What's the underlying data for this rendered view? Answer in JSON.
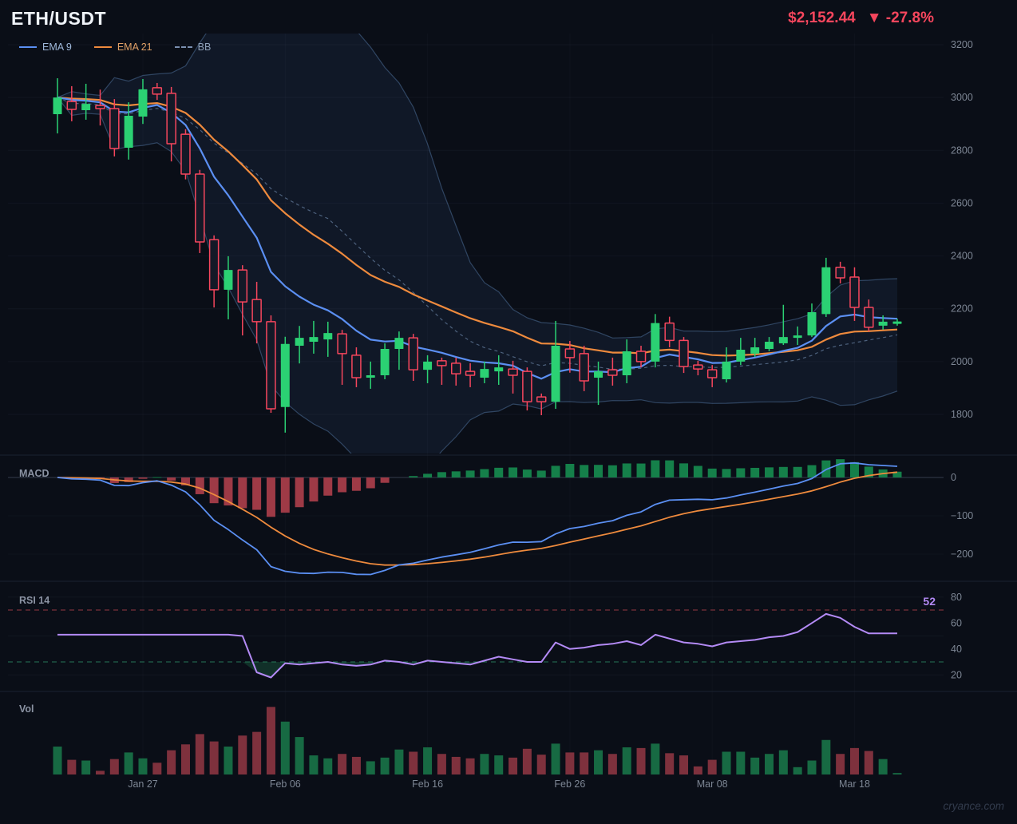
{
  "header": {
    "symbol": "ETH/USDT",
    "price": "$2,152.44",
    "change": "▼ -27.8%",
    "price_color": "#f6465d"
  },
  "legend": [
    {
      "label": "EMA 9",
      "color": "#5b8ff2",
      "style": "solid"
    },
    {
      "label": "EMA 21",
      "color": "#ee8a3d",
      "style": "solid"
    },
    {
      "label": "BB",
      "color": "#7a8fb0",
      "style": "dashed"
    }
  ],
  "watermark": "cryance.com",
  "chart_data": {
    "type": "candlestick",
    "symbol": "ETH/USDT",
    "panels": {
      "macd_label": "MACD",
      "rsi_label": "RSI 14",
      "vol_label": "Vol"
    },
    "x_ticks": [
      {
        "i": 6,
        "label": "Jan 27"
      },
      {
        "i": 16,
        "label": "Feb 06"
      },
      {
        "i": 26,
        "label": "Feb 16"
      },
      {
        "i": 36,
        "label": "Feb 26"
      },
      {
        "i": 46,
        "label": "Mar 08"
      },
      {
        "i": 56,
        "label": "Mar 18"
      }
    ],
    "price_axis_ticks": [
      3200,
      3000,
      2800,
      2600,
      2400,
      2200,
      2000,
      1800
    ],
    "macd_axis_ticks": [
      0,
      -100,
      -200
    ],
    "rsi_axis_ticks": [
      80,
      60,
      40,
      20
    ],
    "candle_columns": [
      "open",
      "high",
      "low",
      "close",
      "volume_rel",
      "bullish"
    ],
    "candles": [
      [
        2937,
        3073,
        2864,
        3000,
        38,
        1
      ],
      [
        2985,
        3043,
        2910,
        2955,
        20,
        0
      ],
      [
        2952,
        3052,
        2916,
        2976,
        19,
        1
      ],
      [
        2970,
        3030,
        2894,
        2958,
        5,
        0
      ],
      [
        2958,
        2994,
        2777,
        2807,
        21,
        0
      ],
      [
        2810,
        2982,
        2765,
        2931,
        30,
        1
      ],
      [
        2928,
        3070,
        2900,
        3031,
        22,
        1
      ],
      [
        3037,
        3055,
        2991,
        3013,
        16,
        0
      ],
      [
        3016,
        3040,
        2758,
        2825,
        33,
        0
      ],
      [
        2861,
        2880,
        2690,
        2710,
        41,
        0
      ],
      [
        2710,
        2726,
        2411,
        2453,
        55,
        0
      ],
      [
        2462,
        2478,
        2205,
        2272,
        45,
        0
      ],
      [
        2272,
        2399,
        2160,
        2347,
        38,
        1
      ],
      [
        2347,
        2365,
        2099,
        2226,
        53,
        0
      ],
      [
        2235,
        2302,
        2069,
        2151,
        58,
        0
      ],
      [
        2151,
        2175,
        1806,
        1821,
        92,
        0
      ],
      [
        1828,
        2094,
        1731,
        2067,
        72,
        1
      ],
      [
        2060,
        2135,
        1993,
        2090,
        51,
        1
      ],
      [
        2075,
        2154,
        2030,
        2093,
        26,
        1
      ],
      [
        2084,
        2151,
        2018,
        2108,
        22,
        1
      ],
      [
        2105,
        2120,
        1912,
        2030,
        28,
        0
      ],
      [
        2024,
        2054,
        1903,
        1939,
        24,
        0
      ],
      [
        1939,
        2000,
        1897,
        1948,
        18,
        1
      ],
      [
        1948,
        2069,
        1933,
        2048,
        23,
        1
      ],
      [
        2048,
        2114,
        1969,
        2090,
        34,
        1
      ],
      [
        2090,
        2105,
        1927,
        1969,
        31,
        0
      ],
      [
        1969,
        2024,
        1918,
        2000,
        37,
        1
      ],
      [
        2003,
        2015,
        1912,
        1985,
        28,
        0
      ],
      [
        1994,
        2015,
        1909,
        1954,
        24,
        0
      ],
      [
        1963,
        1994,
        1903,
        1948,
        22,
        0
      ],
      [
        1939,
        2000,
        1918,
        1972,
        28,
        1
      ],
      [
        1963,
        2024,
        1912,
        1978,
        26,
        1
      ],
      [
        1972,
        2003,
        1879,
        1948,
        23,
        0
      ],
      [
        1963,
        1978,
        1815,
        1848,
        35,
        0
      ],
      [
        1866,
        1879,
        1797,
        1848,
        27,
        0
      ],
      [
        1848,
        2154,
        1821,
        2060,
        42,
        1
      ],
      [
        2048,
        2078,
        1958,
        2015,
        30,
        0
      ],
      [
        2030,
        2060,
        1888,
        1927,
        30,
        0
      ],
      [
        1939,
        2000,
        1836,
        1963,
        33,
        1
      ],
      [
        1969,
        2015,
        1909,
        1948,
        28,
        0
      ],
      [
        1948,
        2084,
        1918,
        2039,
        37,
        1
      ],
      [
        2039,
        2060,
        1978,
        2000,
        36,
        0
      ],
      [
        2000,
        2180,
        1978,
        2146,
        42,
        1
      ],
      [
        2146,
        2170,
        2054,
        2080,
        29,
        0
      ],
      [
        2080,
        2093,
        1957,
        1981,
        26,
        0
      ],
      [
        1987,
        2003,
        1948,
        1972,
        11,
        0
      ],
      [
        1969,
        1987,
        1903,
        1939,
        20,
        0
      ],
      [
        1933,
        2054,
        1921,
        2000,
        31,
        1
      ],
      [
        2000,
        2090,
        1987,
        2045,
        31,
        1
      ],
      [
        2030,
        2090,
        2018,
        2054,
        23,
        1
      ],
      [
        2048,
        2093,
        2039,
        2075,
        28,
        1
      ],
      [
        2069,
        2215,
        2063,
        2093,
        33,
        1
      ],
      [
        2090,
        2133,
        2063,
        2099,
        10,
        1
      ],
      [
        2099,
        2220,
        2093,
        2187,
        19,
        1
      ],
      [
        2180,
        2393,
        2169,
        2357,
        47,
        1
      ],
      [
        2357,
        2378,
        2296,
        2317,
        28,
        0
      ],
      [
        2320,
        2357,
        2154,
        2205,
        36,
        0
      ],
      [
        2205,
        2235,
        2114,
        2130,
        32,
        0
      ],
      [
        2136,
        2175,
        2121,
        2151,
        21,
        1
      ],
      [
        2145,
        2162,
        2136,
        2152,
        2,
        1
      ]
    ],
    "indicators": {
      "ema9": {
        "period": 9,
        "color": "#5b8ff2"
      },
      "ema21": {
        "period": 21,
        "color": "#ee8a3d"
      },
      "bollinger": {
        "period": 20,
        "stddev": 2,
        "band_color": "#5a82b4",
        "fill_color": "rgba(76,120,190,0.10)"
      },
      "macd": {
        "fast": 12,
        "slow": 26,
        "signal": 9,
        "line_color": "#5b8ff2",
        "signal_color": "#ee8a3d",
        "hist_pos_color": "#15804a",
        "hist_neg_color": "#9e3a46"
      },
      "rsi14": {
        "period": 14,
        "current": 52,
        "overbought": 70,
        "oversold": 30,
        "line_color": "#b38af5",
        "ob_color": "#b8434e",
        "os_color": "#2c8f68",
        "values": [
          51,
          51,
          51,
          51,
          51,
          51,
          51,
          51,
          51,
          51,
          51,
          51,
          51,
          50,
          22,
          18,
          29,
          28,
          29,
          30,
          28,
          27,
          28,
          31,
          30,
          28,
          31,
          30,
          29,
          28,
          31,
          34,
          32,
          30,
          30,
          45,
          40,
          41,
          43,
          44,
          46,
          43,
          51,
          48,
          45,
          44,
          42,
          45,
          46,
          47,
          49,
          50,
          53,
          60,
          67,
          64,
          57,
          52,
          52,
          52
        ]
      }
    },
    "colors": {
      "candle_up": "#2bd173",
      "candle_down": "#f6465d",
      "vol_up": "#176a43",
      "vol_down": "#7e313d",
      "axis_text": "#7d8694",
      "panel_label": "#8b93a3"
    }
  }
}
